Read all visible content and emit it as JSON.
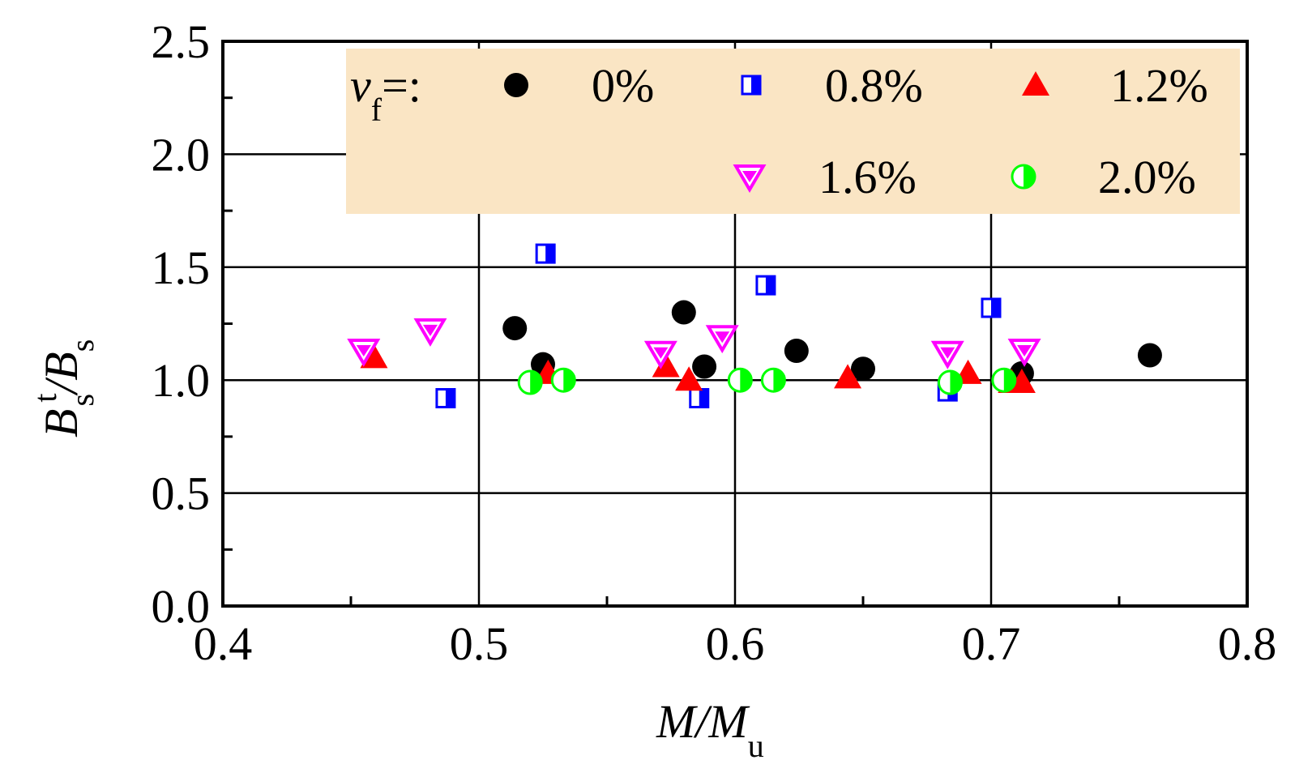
{
  "chart_data": {
    "type": "scatter",
    "title": "",
    "xlabel": "M/Mu",
    "ylabel": "Bs^t/Bs",
    "xlabel_parts": {
      "main": "M/M",
      "sub": "u"
    },
    "ylabel_parts": {
      "b1": "B",
      "sup": "t",
      "sub1": "s",
      "slash": "/",
      "b2": "B",
      "sub2": "s"
    },
    "xlim": [
      0.4,
      0.8
    ],
    "ylim": [
      0.0,
      2.5
    ],
    "xticks": [
      "0.4",
      "0.5",
      "0.6",
      "0.7",
      "0.8"
    ],
    "yticks": [
      "0.0",
      "0.5",
      "1.0",
      "1.5",
      "2.0",
      "2.5"
    ],
    "grid": true,
    "legend": {
      "placement": "top",
      "title_main": "v",
      "title_sub": "f",
      "title_suffix": "=:",
      "background": "#FAE5C4"
    },
    "series": [
      {
        "name": "0%",
        "marker": "circle",
        "color": "#000000",
        "points": [
          [
            0.514,
            1.23
          ],
          [
            0.525,
            1.07
          ],
          [
            0.58,
            1.3
          ],
          [
            0.588,
            1.06
          ],
          [
            0.624,
            1.13
          ],
          [
            0.65,
            1.05
          ],
          [
            0.712,
            1.03
          ],
          [
            0.762,
            1.11
          ]
        ]
      },
      {
        "name": "0.8%",
        "marker": "half-square",
        "color": "#0000FF",
        "points": [
          [
            0.487,
            0.92
          ],
          [
            0.526,
            1.56
          ],
          [
            0.586,
            0.92
          ],
          [
            0.612,
            1.42
          ],
          [
            0.683,
            0.95
          ],
          [
            0.7,
            1.32
          ]
        ]
      },
      {
        "name": "1.2%",
        "marker": "triangle-up",
        "color": "#FF0000",
        "points": [
          [
            0.459,
            1.1
          ],
          [
            0.527,
            1.03
          ],
          [
            0.573,
            1.06
          ],
          [
            0.582,
            1.0
          ],
          [
            0.644,
            1.01
          ],
          [
            0.691,
            1.03
          ],
          [
            0.708,
            0.99
          ],
          [
            0.712,
            0.99
          ]
        ]
      },
      {
        "name": "1.6%",
        "marker": "triangle-down",
        "color": "#FF00FF",
        "points": [
          [
            0.455,
            1.13
          ],
          [
            0.481,
            1.22
          ],
          [
            0.571,
            1.12
          ],
          [
            0.595,
            1.19
          ],
          [
            0.683,
            1.12
          ],
          [
            0.713,
            1.13
          ]
        ]
      },
      {
        "name": "2.0%",
        "marker": "half-circle",
        "color": "#00FF00",
        "points": [
          [
            0.52,
            0.99
          ],
          [
            0.533,
            1.0
          ],
          [
            0.602,
            1.0
          ],
          [
            0.615,
            1.0
          ],
          [
            0.684,
            0.99
          ],
          [
            0.705,
            1.0
          ]
        ]
      }
    ]
  }
}
